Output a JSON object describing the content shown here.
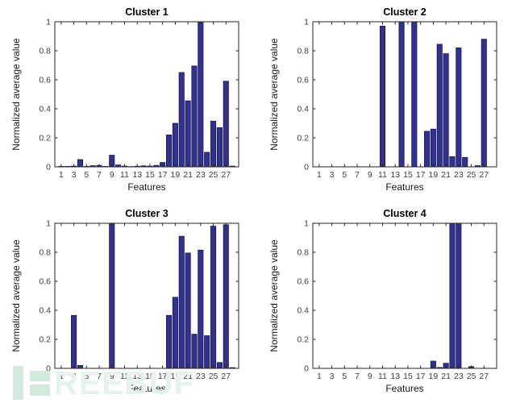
{
  "figure": {
    "background": "#ffffff"
  },
  "style": {
    "axis_color": "#262626",
    "tick_label_color": "#3d3d3d",
    "title_color": "#000000",
    "axis_label_color": "#1a1a1a",
    "bar_color": "#31318f",
    "bar_edge_color": "#191950"
  },
  "chart_data": [
    {
      "type": "bar",
      "title": "Cluster 1",
      "xlabel": "Features",
      "ylabel": "Normalized average value",
      "x": [
        1,
        2,
        3,
        4,
        5,
        6,
        7,
        8,
        9,
        10,
        11,
        12,
        13,
        14,
        15,
        16,
        17,
        18,
        19,
        20,
        21,
        22,
        23,
        24,
        25,
        26,
        27,
        28
      ],
      "values": [
        0.003,
        0.003,
        0.005,
        0.05,
        0.003,
        0.008,
        0.01,
        0.003,
        0.08,
        0.013,
        0.005,
        0.002,
        0.004,
        0.007,
        0.005,
        0.01,
        0.03,
        0.22,
        0.3,
        0.65,
        0.455,
        0.695,
        1,
        0.1,
        0.315,
        0.27,
        0.59,
        0.005
      ],
      "xticks": [
        1,
        3,
        5,
        7,
        9,
        11,
        13,
        15,
        17,
        19,
        21,
        23,
        25,
        27
      ],
      "yticks": [
        0,
        0.2,
        0.4,
        0.6,
        0.8,
        1
      ],
      "xlim": [
        0,
        29
      ],
      "ylim": [
        0,
        1
      ],
      "grid": false,
      "legend": null
    },
    {
      "type": "bar",
      "title": "Cluster 2",
      "xlabel": "Features",
      "ylabel": "Normalized average value",
      "x": [
        1,
        2,
        3,
        4,
        5,
        6,
        7,
        8,
        9,
        10,
        11,
        12,
        13,
        14,
        15,
        16,
        17,
        18,
        19,
        20,
        21,
        22,
        23,
        24,
        25,
        26,
        27,
        28
      ],
      "values": [
        0,
        0,
        0,
        0,
        0,
        0,
        0,
        0,
        0,
        0,
        0.97,
        0,
        0,
        1,
        0,
        1,
        0,
        0.245,
        0.26,
        0.845,
        0.78,
        0.07,
        0.82,
        0.065,
        0,
        0.008,
        0.88,
        0
      ],
      "xticks": [
        1,
        3,
        5,
        7,
        9,
        11,
        13,
        15,
        17,
        19,
        21,
        23,
        25,
        27
      ],
      "yticks": [
        0,
        0.2,
        0.4,
        0.6,
        0.8,
        1
      ],
      "xlim": [
        0,
        29
      ],
      "ylim": [
        0,
        1
      ],
      "grid": false,
      "legend": null
    },
    {
      "type": "bar",
      "title": "Cluster 3",
      "xlabel": "Features",
      "ylabel": "Normalized average value",
      "x": [
        1,
        2,
        3,
        4,
        5,
        6,
        7,
        8,
        9,
        10,
        11,
        12,
        13,
        14,
        15,
        16,
        17,
        18,
        19,
        20,
        21,
        22,
        23,
        24,
        25,
        26,
        27,
        28
      ],
      "values": [
        0,
        0,
        0.365,
        0.02,
        0,
        0,
        0,
        0,
        1,
        0,
        0,
        0,
        0,
        0,
        0,
        0,
        0,
        0.365,
        0.49,
        0.91,
        0.795,
        0.235,
        0.815,
        0.225,
        0.98,
        0.04,
        0.99,
        0.005
      ],
      "xticks": [
        1,
        3,
        5,
        7,
        9,
        11,
        13,
        15,
        17,
        19,
        21,
        23,
        25,
        27
      ],
      "yticks": [
        0,
        0.2,
        0.4,
        0.6,
        0.8,
        1
      ],
      "xlim": [
        0,
        29
      ],
      "ylim": [
        0,
        1
      ],
      "grid": false,
      "legend": null
    },
    {
      "type": "bar",
      "title": "Cluster 4",
      "xlabel": "Features",
      "ylabel": "Normalized average value",
      "x": [
        1,
        2,
        3,
        4,
        5,
        6,
        7,
        8,
        9,
        10,
        11,
        12,
        13,
        14,
        15,
        16,
        17,
        18,
        19,
        20,
        21,
        22,
        23,
        24,
        25,
        26,
        27,
        28
      ],
      "values": [
        0,
        0,
        0,
        0,
        0,
        0,
        0,
        0,
        0,
        0,
        0,
        0,
        0,
        0,
        0,
        0,
        0,
        0,
        0.05,
        0.006,
        0.035,
        1,
        1,
        0,
        0.012,
        0,
        0,
        0
      ],
      "xticks": [
        1,
        3,
        5,
        7,
        9,
        11,
        13,
        15,
        17,
        19,
        21,
        23,
        25,
        27
      ],
      "yticks": [
        0,
        0.2,
        0.4,
        0.6,
        0.8,
        1
      ],
      "xlim": [
        0,
        29
      ],
      "ylim": [
        0,
        1
      ],
      "grid": false,
      "legend": null
    }
  ],
  "watermark": {
    "text": "REEBUF",
    "logo_color": "#d2e9dc",
    "text_color": "#e6f2ec"
  }
}
